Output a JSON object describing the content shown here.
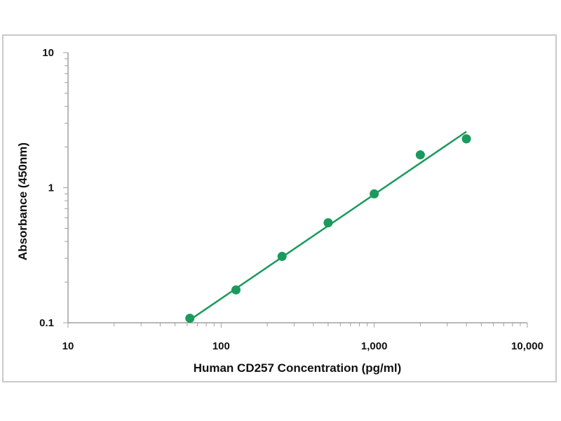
{
  "chart_data": {
    "type": "scatter",
    "title": "",
    "xlabel": "Human CD257 Concentration (pg/ml)",
    "ylabel": "Absorbance (450nm)",
    "xscale": "log",
    "yscale": "log",
    "xlim": [
      10,
      10000
    ],
    "ylim": [
      0.1,
      10
    ],
    "x_ticks": [
      10,
      100,
      1000,
      10000
    ],
    "x_tick_labels": [
      "10",
      "100",
      "1,000",
      "10,000"
    ],
    "y_ticks": [
      0.1,
      1,
      10
    ],
    "y_tick_labels": [
      "0.1",
      "1",
      "10"
    ],
    "grid": false,
    "legend": "none",
    "color": "#1a9a5c",
    "series": [
      {
        "points": [
          {
            "x": 62.5,
            "y": 0.108
          },
          {
            "x": 125,
            "y": 0.175
          },
          {
            "x": 250,
            "y": 0.31
          },
          {
            "x": 500,
            "y": 0.55
          },
          {
            "x": 1000,
            "y": 0.9
          },
          {
            "x": 2000,
            "y": 1.75
          },
          {
            "x": 4000,
            "y": 2.3
          }
        ]
      }
    ],
    "fit_line": {
      "x": [
        62.5,
        4000
      ],
      "y": [
        0.105,
        2.6
      ]
    }
  }
}
